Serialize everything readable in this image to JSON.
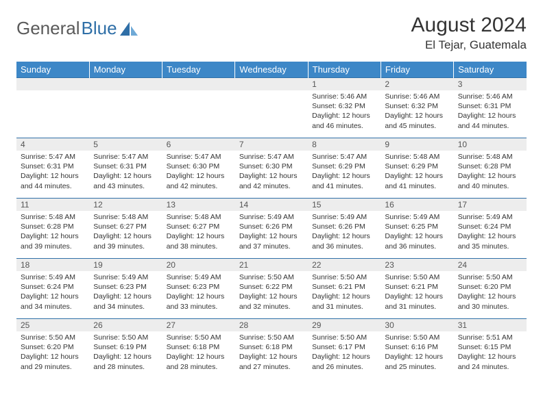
{
  "logo": {
    "text1": "General",
    "text2": "Blue"
  },
  "title": "August 2024",
  "location": "El Tejar, Guatemala",
  "colors": {
    "header_bg": "#3d87c7",
    "header_text": "#ffffff",
    "daynum_bg": "#ededed",
    "border": "#2f6fa7",
    "logo_gray": "#5a5a5a",
    "logo_blue": "#2f6fa7"
  },
  "week_headers": [
    "Sunday",
    "Monday",
    "Tuesday",
    "Wednesday",
    "Thursday",
    "Friday",
    "Saturday"
  ],
  "weeks": [
    [
      null,
      null,
      null,
      null,
      {
        "n": "1",
        "sr": "5:46 AM",
        "ss": "6:32 PM",
        "dl": "12 hours and 46 minutes."
      },
      {
        "n": "2",
        "sr": "5:46 AM",
        "ss": "6:32 PM",
        "dl": "12 hours and 45 minutes."
      },
      {
        "n": "3",
        "sr": "5:46 AM",
        "ss": "6:31 PM",
        "dl": "12 hours and 44 minutes."
      }
    ],
    [
      {
        "n": "4",
        "sr": "5:47 AM",
        "ss": "6:31 PM",
        "dl": "12 hours and 44 minutes."
      },
      {
        "n": "5",
        "sr": "5:47 AM",
        "ss": "6:31 PM",
        "dl": "12 hours and 43 minutes."
      },
      {
        "n": "6",
        "sr": "5:47 AM",
        "ss": "6:30 PM",
        "dl": "12 hours and 42 minutes."
      },
      {
        "n": "7",
        "sr": "5:47 AM",
        "ss": "6:30 PM",
        "dl": "12 hours and 42 minutes."
      },
      {
        "n": "8",
        "sr": "5:47 AM",
        "ss": "6:29 PM",
        "dl": "12 hours and 41 minutes."
      },
      {
        "n": "9",
        "sr": "5:48 AM",
        "ss": "6:29 PM",
        "dl": "12 hours and 41 minutes."
      },
      {
        "n": "10",
        "sr": "5:48 AM",
        "ss": "6:28 PM",
        "dl": "12 hours and 40 minutes."
      }
    ],
    [
      {
        "n": "11",
        "sr": "5:48 AM",
        "ss": "6:28 PM",
        "dl": "12 hours and 39 minutes."
      },
      {
        "n": "12",
        "sr": "5:48 AM",
        "ss": "6:27 PM",
        "dl": "12 hours and 39 minutes."
      },
      {
        "n": "13",
        "sr": "5:48 AM",
        "ss": "6:27 PM",
        "dl": "12 hours and 38 minutes."
      },
      {
        "n": "14",
        "sr": "5:49 AM",
        "ss": "6:26 PM",
        "dl": "12 hours and 37 minutes."
      },
      {
        "n": "15",
        "sr": "5:49 AM",
        "ss": "6:26 PM",
        "dl": "12 hours and 36 minutes."
      },
      {
        "n": "16",
        "sr": "5:49 AM",
        "ss": "6:25 PM",
        "dl": "12 hours and 36 minutes."
      },
      {
        "n": "17",
        "sr": "5:49 AM",
        "ss": "6:24 PM",
        "dl": "12 hours and 35 minutes."
      }
    ],
    [
      {
        "n": "18",
        "sr": "5:49 AM",
        "ss": "6:24 PM",
        "dl": "12 hours and 34 minutes."
      },
      {
        "n": "19",
        "sr": "5:49 AM",
        "ss": "6:23 PM",
        "dl": "12 hours and 34 minutes."
      },
      {
        "n": "20",
        "sr": "5:49 AM",
        "ss": "6:23 PM",
        "dl": "12 hours and 33 minutes."
      },
      {
        "n": "21",
        "sr": "5:50 AM",
        "ss": "6:22 PM",
        "dl": "12 hours and 32 minutes."
      },
      {
        "n": "22",
        "sr": "5:50 AM",
        "ss": "6:21 PM",
        "dl": "12 hours and 31 minutes."
      },
      {
        "n": "23",
        "sr": "5:50 AM",
        "ss": "6:21 PM",
        "dl": "12 hours and 31 minutes."
      },
      {
        "n": "24",
        "sr": "5:50 AM",
        "ss": "6:20 PM",
        "dl": "12 hours and 30 minutes."
      }
    ],
    [
      {
        "n": "25",
        "sr": "5:50 AM",
        "ss": "6:20 PM",
        "dl": "12 hours and 29 minutes."
      },
      {
        "n": "26",
        "sr": "5:50 AM",
        "ss": "6:19 PM",
        "dl": "12 hours and 28 minutes."
      },
      {
        "n": "27",
        "sr": "5:50 AM",
        "ss": "6:18 PM",
        "dl": "12 hours and 28 minutes."
      },
      {
        "n": "28",
        "sr": "5:50 AM",
        "ss": "6:18 PM",
        "dl": "12 hours and 27 minutes."
      },
      {
        "n": "29",
        "sr": "5:50 AM",
        "ss": "6:17 PM",
        "dl": "12 hours and 26 minutes."
      },
      {
        "n": "30",
        "sr": "5:50 AM",
        "ss": "6:16 PM",
        "dl": "12 hours and 25 minutes."
      },
      {
        "n": "31",
        "sr": "5:51 AM",
        "ss": "6:15 PM",
        "dl": "12 hours and 24 minutes."
      }
    ]
  ],
  "labels": {
    "sunrise": "Sunrise:",
    "sunset": "Sunset:",
    "daylight": "Daylight:"
  }
}
